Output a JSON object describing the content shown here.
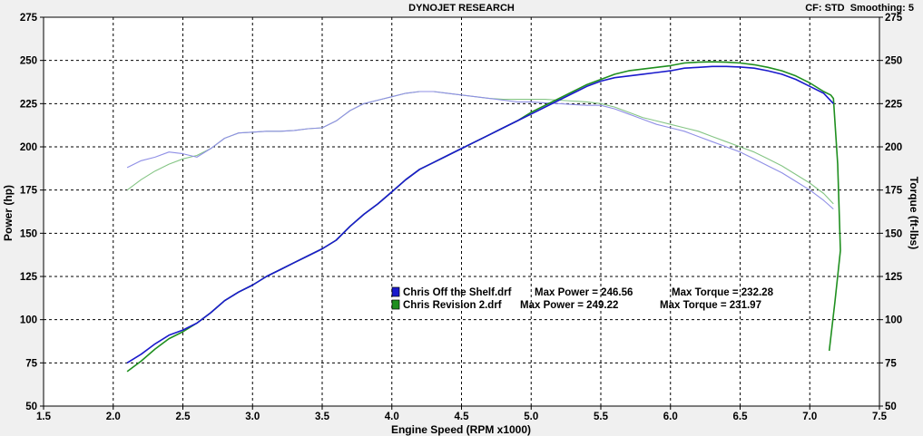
{
  "header": {
    "title": "DYNOJET RESEARCH",
    "cf_label": "CF: STD",
    "smoothing_label": "Smoothing: 5"
  },
  "chart_data": {
    "type": "line",
    "title": "DYNOJET RESEARCH",
    "xlabel": "Engine Speed (RPM x1000)",
    "ylabel_left": "Power (hp)",
    "ylabel_right": "Torque (ft-lbs)",
    "xlim": [
      1.5,
      7.5
    ],
    "ylim_left": [
      50,
      275
    ],
    "ylim_right": [
      50,
      275
    ],
    "x_ticks": [
      "1.5",
      "2.0",
      "2.5",
      "3.0",
      "3.5",
      "4.0",
      "4.5",
      "5.0",
      "5.5",
      "6.0",
      "6.5",
      "7.0",
      "7.5"
    ],
    "y_ticks_left": [
      "50",
      "75",
      "100",
      "125",
      "150",
      "175",
      "200",
      "225",
      "250",
      "275"
    ],
    "y_ticks_right": [
      "50",
      "75",
      "100",
      "125",
      "150",
      "175",
      "200",
      "225",
      "250",
      "275"
    ],
    "grid": true,
    "colors": {
      "off_shelf_power": "#1a1acc",
      "off_shelf_torque": "#8f8fe6",
      "revision2_power": "#1f8f1f",
      "revision2_torque": "#85c585"
    },
    "series": [
      {
        "name": "Chris Off the Shelf.drf",
        "measure": "power",
        "axis": "left",
        "x": [
          2.1,
          2.2,
          2.3,
          2.4,
          2.5,
          2.6,
          2.7,
          2.8,
          2.9,
          3.0,
          3.1,
          3.2,
          3.3,
          3.4,
          3.5,
          3.6,
          3.7,
          3.8,
          3.9,
          4.0,
          4.1,
          4.2,
          4.3,
          4.4,
          4.5,
          4.6,
          4.7,
          4.8,
          4.9,
          5.0,
          5.1,
          5.2,
          5.3,
          5.4,
          5.5,
          5.6,
          5.7,
          5.8,
          5.9,
          6.0,
          6.1,
          6.2,
          6.3,
          6.4,
          6.5,
          6.6,
          6.7,
          6.8,
          6.9,
          7.0,
          7.1,
          7.17
        ],
        "y": [
          75,
          80,
          86,
          91,
          94,
          98,
          104,
          111,
          116,
          120,
          125,
          129,
          133,
          137,
          141,
          146,
          154,
          161,
          167,
          174,
          181,
          187,
          191,
          195,
          199,
          203,
          207,
          211,
          215,
          219,
          223,
          227,
          231,
          235,
          238,
          240,
          241,
          242,
          243,
          244,
          245.5,
          246,
          246.5,
          246.5,
          246.2,
          245.5,
          244,
          242,
          239,
          235,
          231,
          225
        ]
      },
      {
        "name": "Chris Revision 2.drf",
        "measure": "power",
        "axis": "left",
        "x": [
          2.1,
          2.2,
          2.3,
          2.4,
          2.5,
          2.6,
          2.7,
          2.8,
          2.9,
          3.0,
          3.1,
          3.2,
          3.3,
          3.4,
          3.5,
          3.6,
          3.7,
          3.8,
          3.9,
          4.0,
          4.1,
          4.2,
          4.3,
          4.4,
          4.5,
          4.6,
          4.7,
          4.8,
          4.9,
          5.0,
          5.1,
          5.2,
          5.3,
          5.4,
          5.5,
          5.6,
          5.7,
          5.8,
          5.9,
          6.0,
          6.1,
          6.2,
          6.3,
          6.4,
          6.5,
          6.6,
          6.7,
          6.8,
          6.9,
          7.0,
          7.1,
          7.15,
          7.17,
          7.2,
          7.22,
          7.18,
          7.14
        ],
        "y": [
          70,
          76,
          83,
          89,
          93,
          98,
          104,
          111,
          116,
          120,
          125,
          129,
          133,
          137,
          141,
          146,
          154,
          161,
          167,
          174,
          181,
          187,
          191,
          195,
          199,
          203,
          207,
          211,
          215,
          220,
          224,
          228,
          232,
          236,
          239,
          242,
          244,
          245,
          246,
          247,
          248.5,
          249,
          249.2,
          249,
          248.5,
          247.5,
          246,
          244,
          241,
          237,
          232,
          230,
          228,
          190,
          140,
          110,
          82
        ]
      },
      {
        "name": "Chris Off the Shelf.drf",
        "measure": "torque",
        "axis": "right",
        "x": [
          2.1,
          2.2,
          2.3,
          2.4,
          2.5,
          2.6,
          2.7,
          2.8,
          2.9,
          3.0,
          3.1,
          3.2,
          3.3,
          3.4,
          3.5,
          3.6,
          3.7,
          3.8,
          3.9,
          4.0,
          4.1,
          4.2,
          4.3,
          4.4,
          4.5,
          4.6,
          4.7,
          4.8,
          4.9,
          5.0,
          5.1,
          5.2,
          5.3,
          5.4,
          5.5,
          5.6,
          5.7,
          5.8,
          5.9,
          6.0,
          6.1,
          6.2,
          6.3,
          6.4,
          6.5,
          6.6,
          6.7,
          6.8,
          6.9,
          7.0,
          7.1,
          7.17
        ],
        "y": [
          188,
          192,
          194,
          197,
          196,
          194,
          199,
          205,
          208,
          208.5,
          209,
          209,
          209.5,
          210.5,
          211,
          215,
          221,
          225,
          227,
          229,
          231,
          232,
          232,
          231,
          230,
          229,
          228,
          227,
          226,
          226,
          225.5,
          225,
          224.5,
          224,
          224,
          222,
          219,
          216,
          213,
          211,
          209,
          206,
          203,
          200,
          197,
          193,
          189,
          185,
          180,
          175,
          169,
          164
        ]
      },
      {
        "name": "Chris Revision 2.drf",
        "measure": "torque",
        "axis": "right",
        "x": [
          2.1,
          2.2,
          2.3,
          2.4,
          2.5,
          2.6,
          2.7,
          2.8,
          2.9,
          3.0,
          3.1,
          3.2,
          3.3,
          3.4,
          3.5,
          3.6,
          3.7,
          3.8,
          3.9,
          4.0,
          4.1,
          4.2,
          4.3,
          4.4,
          4.5,
          4.6,
          4.7,
          4.8,
          4.9,
          5.0,
          5.1,
          5.2,
          5.3,
          5.4,
          5.5,
          5.6,
          5.7,
          5.8,
          5.9,
          6.0,
          6.1,
          6.2,
          6.3,
          6.4,
          6.5,
          6.6,
          6.7,
          6.8,
          6.9,
          7.0,
          7.1,
          7.17
        ],
        "y": [
          175,
          181,
          186,
          190,
          193,
          195,
          199,
          205,
          208,
          208.5,
          209,
          209,
          209.5,
          210.5,
          211,
          215,
          221,
          225,
          227,
          229,
          231,
          232,
          232,
          231,
          230,
          229,
          228,
          227.5,
          227.5,
          227.5,
          227.5,
          227,
          226.5,
          226,
          225,
          223,
          220,
          217,
          215,
          213,
          211,
          209,
          206,
          203,
          200,
          197,
          193,
          189,
          184,
          179,
          173,
          167
        ]
      }
    ],
    "legend": [
      {
        "file": "Chris Off the Shelf.drf",
        "power_label": "Max Power = 246.56",
        "torque_label": "Max Torque = 232.28",
        "color": "#1a1acc"
      },
      {
        "file": "Chris Revision 2.drf",
        "power_label": "Max Power = 249.22",
        "torque_label": "Max Torque = 231.97",
        "color": "#1f8f1f"
      }
    ]
  }
}
